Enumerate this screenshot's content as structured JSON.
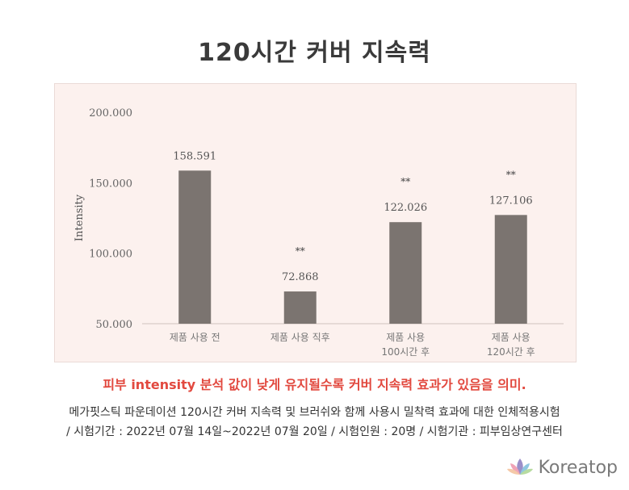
{
  "title": "120시간 커버 지속력",
  "caption": "피부 intensity 분석 값이 낮게 유지될수록 커버 지속력 효과가 있음을 의미.",
  "description_line1": "메가핏스틱 파운데이션 120시간 커버 지속력 및 브러쉬와 함께 사용시 밀착력 효과에 대한 인체적용시험",
  "description_line2": "/ 시험기간 : 2022년 07월 14일~2022년 07월 20일 / 시험인원 : 20명 / 시험기관 : 피부임상연구센터",
  "brand": {
    "name": "Koreatop",
    "icon": "lotus-icon",
    "color": "#8a8a8a"
  },
  "chart_data": {
    "type": "bar",
    "ylabel": "Intensity",
    "ylim": [
      50,
      200
    ],
    "yticks": [
      "200.000",
      "150.000",
      "100.000",
      "50.000"
    ],
    "ytick_values": [
      200,
      150,
      100,
      50
    ],
    "categories": [
      [
        "제품 사용 전"
      ],
      [
        "제품 사용 직후"
      ],
      [
        "제품 사용",
        "100시간 후"
      ],
      [
        "제품 사용",
        "120시간 후"
      ]
    ],
    "values": [
      158.591,
      72.868,
      122.026,
      127.106
    ],
    "value_labels": [
      "158.591",
      "72.868",
      "122.026",
      "127.106"
    ],
    "significance": [
      "",
      "**",
      "**",
      "**"
    ],
    "bar_color": "#7b7470",
    "grid": false
  }
}
